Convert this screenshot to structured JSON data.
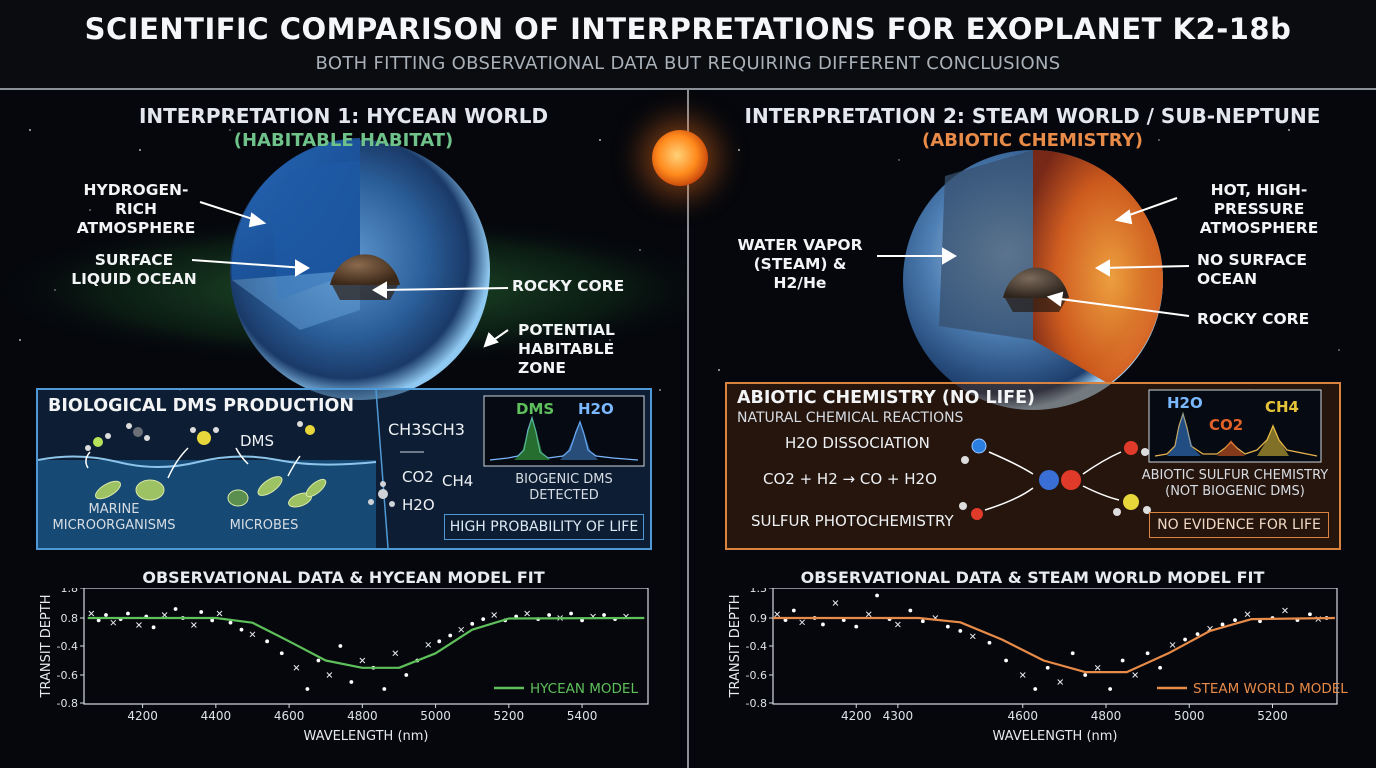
{
  "header": {
    "title": "SCIENTIFIC COMPARISON OF INTERPRETATIONS FOR EXOPLANET K2-18b",
    "subtitle": "BOTH FITTING OBSERVATIONAL DATA BUT REQUIRING DIFFERENT CONCLUSIONS"
  },
  "left": {
    "heading": "INTERPRETATION 1: HYCEAN WORLD",
    "subheading": "(HABITABLE HABITAT)",
    "labels": {
      "atmosphere": "HYDROGEN-RICH\nATMOSPHERE",
      "ocean": "SURFACE\nLIQUID OCEAN",
      "core": "ROCKY CORE",
      "zone": "POTENTIAL\nHABITABLE ZONE"
    },
    "box": {
      "title": "BIOLOGICAL DMS PRODUCTION",
      "dms": "DMS",
      "marine": "MARINE\nMICROORGANISMS",
      "microbes": "MICROBES",
      "formula_main": "CH3SCH3",
      "co2": "CO2",
      "ch4": "CH4",
      "h2o": "H2O",
      "spec_label_1": "DMS",
      "spec_label_2": "H2O",
      "spec_caption": "BIOGENIC DMS\nDETECTED",
      "tag": "HIGH PROBABILITY OF LIFE"
    },
    "chart_title": "OBSERVATIONAL DATA & HYCEAN MODEL FIT",
    "legend": "HYCEAN MODEL",
    "ylabel": "TRANSIT DEPTH",
    "xlabel": "WAVELENGTH (nm)"
  },
  "right": {
    "heading": "INTERPRETATION 2: STEAM WORLD / SUB-NEPTUNE",
    "subheading": "(ABIOTIC CHEMISTRY)",
    "labels": {
      "atmosphere": "HOT, HIGH-PRESSURE\nATMOSPHERE",
      "vapor": "WATER VAPOR\n(STEAM) & H2/He",
      "ocean": "NO SURFACE\nOCEAN",
      "core": "ROCKY CORE"
    },
    "box": {
      "title": "ABIOTIC CHEMISTRY (NO LIFE)",
      "subtitle": "NATURAL CHEMICAL REACTIONS",
      "dissociation": "H2O DISSOCIATION",
      "reaction": "CO2 + H2 → CO + H2O",
      "photo": "SULFUR PHOTOCHEMISTRY",
      "spec_label_1": "H2O",
      "spec_label_2": "CO2",
      "spec_label_3": "CH4",
      "spec_caption": "ABIOTIC SULFUR CHEMISTRY\n(NOT BIOGENIC DMS)",
      "tag": "NO EVIDENCE FOR LIFE"
    },
    "chart_title": "OBSERVATIONAL DATA & STEAM WORLD MODEL FIT",
    "legend": "STEAM WORLD MODEL",
    "ylabel": "TRANSIT DEPTH",
    "xlabel": "WAVELENGTH (nm)"
  },
  "colors": {
    "hycean": "#5ec05a",
    "steam": "#e88a48",
    "left_box": "#4f9ad6",
    "right_box": "#d9833f",
    "left_sub": "#6fc28a",
    "right_sub": "#e88a48"
  },
  "chart_data": [
    {
      "type": "scatter",
      "series": [
        {
          "name": "HYCEAN MODEL"
        }
      ],
      "xlabel": "WAVELENGTH (nm)",
      "ylabel": "TRANSIT DEPTH",
      "xticks": [
        4200,
        4400,
        4600,
        4800,
        5000,
        5200,
        5400
      ],
      "yticks": [
        1.8,
        0.8,
        -0.4,
        -0.6,
        -0.8
      ],
      "model_x": [
        4050,
        4400,
        4500,
        4600,
        4700,
        4800,
        4900,
        5000,
        5100,
        5200,
        5570
      ],
      "model_y": [
        0.8,
        0.8,
        0.6,
        -0.2,
        -0.5,
        -0.55,
        -0.55,
        -0.45,
        0.3,
        0.78,
        0.8
      ],
      "points_x": [
        4060,
        4080,
        4100,
        4120,
        4140,
        4160,
        4190,
        4210,
        4230,
        4260,
        4290,
        4310,
        4340,
        4360,
        4390,
        4410,
        4440,
        4470,
        4500,
        4540,
        4580,
        4620,
        4650,
        4680,
        4710,
        4740,
        4770,
        4800,
        4830,
        4860,
        4890,
        4920,
        4950,
        4980,
        5010,
        5040,
        5070,
        5100,
        5130,
        5160,
        5190,
        5220,
        5250,
        5280,
        5310,
        5340,
        5370,
        5400,
        5430,
        5460,
        5490,
        5520
      ],
      "points_y": [
        0.95,
        0.7,
        0.9,
        0.6,
        0.75,
        0.95,
        0.5,
        0.85,
        0.4,
        0.9,
        1.1,
        0.8,
        0.5,
        1.0,
        0.7,
        0.95,
        0.6,
        0.3,
        0.1,
        -0.2,
        -0.45,
        -0.55,
        -0.7,
        -0.5,
        -0.6,
        -0.4,
        -0.65,
        -0.5,
        -0.55,
        -0.7,
        -0.45,
        -0.6,
        -0.5,
        -0.35,
        -0.2,
        0.05,
        0.3,
        0.55,
        0.75,
        0.9,
        0.7,
        0.85,
        0.95,
        0.75,
        0.9,
        0.8,
        0.95,
        0.7,
        0.85,
        0.9,
        0.75,
        0.85
      ]
    },
    {
      "type": "scatter",
      "series": [
        {
          "name": "STEAM WORLD MODEL"
        }
      ],
      "xlabel": "WAVELENGTH (nm)",
      "ylabel": "TRANSIT DEPTH",
      "xticks": [
        4200,
        4300,
        4600,
        4800,
        5000,
        5200
      ],
      "yticks": [
        1.3,
        0.9,
        -0.4,
        -0.6,
        -0.8
      ],
      "model_x": [
        4000,
        4350,
        4450,
        4550,
        4650,
        4750,
        4850,
        4950,
        5050,
        5150,
        5350
      ],
      "model_y": [
        0.9,
        0.9,
        0.7,
        -0.1,
        -0.5,
        -0.58,
        -0.58,
        -0.45,
        0.3,
        0.85,
        0.9
      ],
      "points_x": [
        4010,
        4030,
        4050,
        4070,
        4100,
        4120,
        4150,
        4170,
        4200,
        4230,
        4250,
        4280,
        4300,
        4330,
        4360,
        4390,
        4420,
        4450,
        4480,
        4520,
        4560,
        4600,
        4630,
        4660,
        4690,
        4720,
        4750,
        4780,
        4810,
        4840,
        4870,
        4900,
        4930,
        4960,
        4990,
        5020,
        5050,
        5080,
        5110,
        5140,
        5170,
        5200,
        5230,
        5260,
        5290,
        5310,
        5330
      ],
      "points_y": [
        0.95,
        0.8,
        1.0,
        0.7,
        0.9,
        0.6,
        1.1,
        0.8,
        0.5,
        0.95,
        1.2,
        0.85,
        0.6,
        1.0,
        0.75,
        0.9,
        0.5,
        0.3,
        0.05,
        -0.25,
        -0.5,
        -0.6,
        -0.7,
        -0.55,
        -0.65,
        -0.45,
        -0.6,
        -0.55,
        -0.7,
        -0.5,
        -0.6,
        -0.45,
        -0.55,
        -0.35,
        -0.1,
        0.15,
        0.4,
        0.6,
        0.8,
        0.95,
        0.75,
        0.9,
        1.0,
        0.8,
        0.95,
        0.85,
        0.9
      ]
    }
  ]
}
